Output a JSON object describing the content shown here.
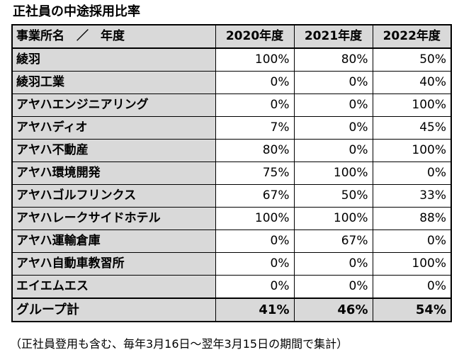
{
  "title": "正社員の中途採用比率",
  "table": {
    "header": {
      "name": "事業所名　／　年度",
      "years": [
        "2020年度",
        "2021年度",
        "2022年度"
      ]
    },
    "rows": [
      {
        "name": "綾羽",
        "values": [
          "100%",
          "80%",
          "50%"
        ]
      },
      {
        "name": "綾羽工業",
        "values": [
          "0%",
          "0%",
          "40%"
        ]
      },
      {
        "name": "アヤハエンジニアリング",
        "values": [
          "0%",
          "0%",
          "100%"
        ]
      },
      {
        "name": "アヤハディオ",
        "values": [
          "7%",
          "0%",
          "45%"
        ]
      },
      {
        "name": "アヤハ不動産",
        "values": [
          "80%",
          "0%",
          "100%"
        ]
      },
      {
        "name": "アヤハ環境開発",
        "values": [
          "75%",
          "100%",
          "0%"
        ]
      },
      {
        "name": "アヤハゴルフリンクス",
        "values": [
          "67%",
          "50%",
          "33%"
        ]
      },
      {
        "name": "アヤハレークサイドホテル",
        "values": [
          "100%",
          "100%",
          "88%"
        ]
      },
      {
        "name": "アヤハ運輸倉庫",
        "values": [
          "0%",
          "67%",
          "0%"
        ]
      },
      {
        "name": "アヤハ自動車教習所",
        "values": [
          "0%",
          "0%",
          "100%"
        ]
      },
      {
        "name": "エイエムエス",
        "values": [
          "0%",
          "0%",
          "0%"
        ]
      }
    ],
    "total": {
      "name": "グループ計",
      "values": [
        "41%",
        "46%",
        "54%"
      ]
    }
  },
  "footnote": "（正社員登用も含む、毎年3月16日～翌年3月15日の期間で集計）",
  "colors": {
    "label_fill": "#d9d9d9",
    "border": "#000000",
    "background": "#ffffff"
  }
}
